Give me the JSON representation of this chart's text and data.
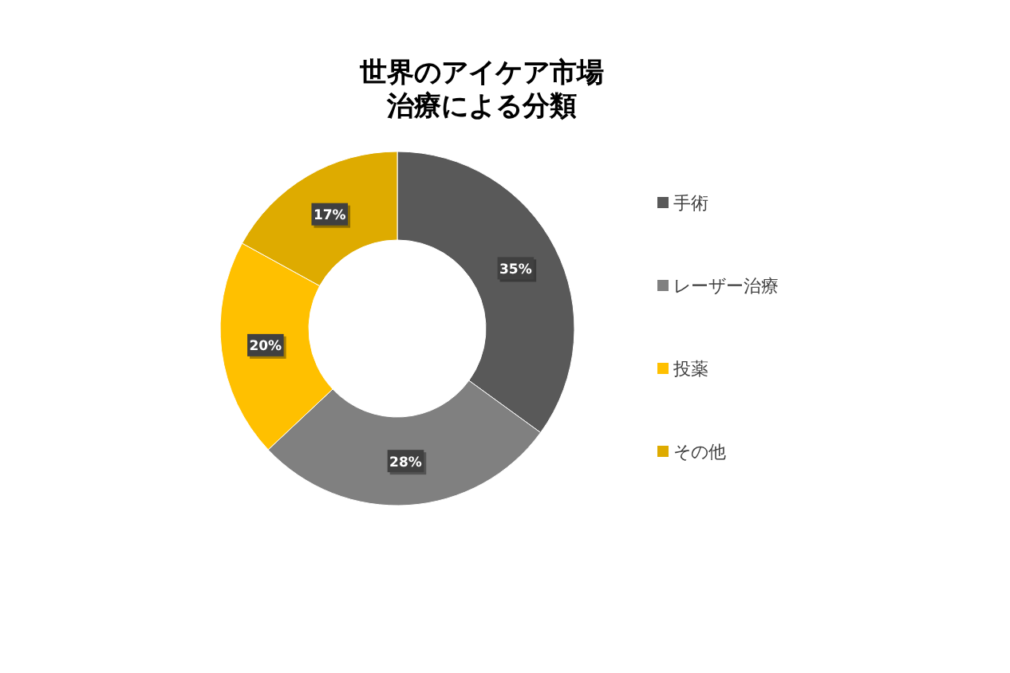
{
  "chart_data": {
    "type": "donut",
    "title": "世界のアイケア市場治療による分類",
    "categories": [
      "手術",
      "レーザー治療",
      "投薬",
      "その他"
    ],
    "values": [
      35,
      28,
      20,
      17
    ],
    "colors": [
      "#595959",
      "#808080",
      "#ffc000",
      "#deab00"
    ],
    "value_labels": [
      "35%",
      "28%",
      "20%",
      "17%"
    ],
    "legend": "right"
  }
}
